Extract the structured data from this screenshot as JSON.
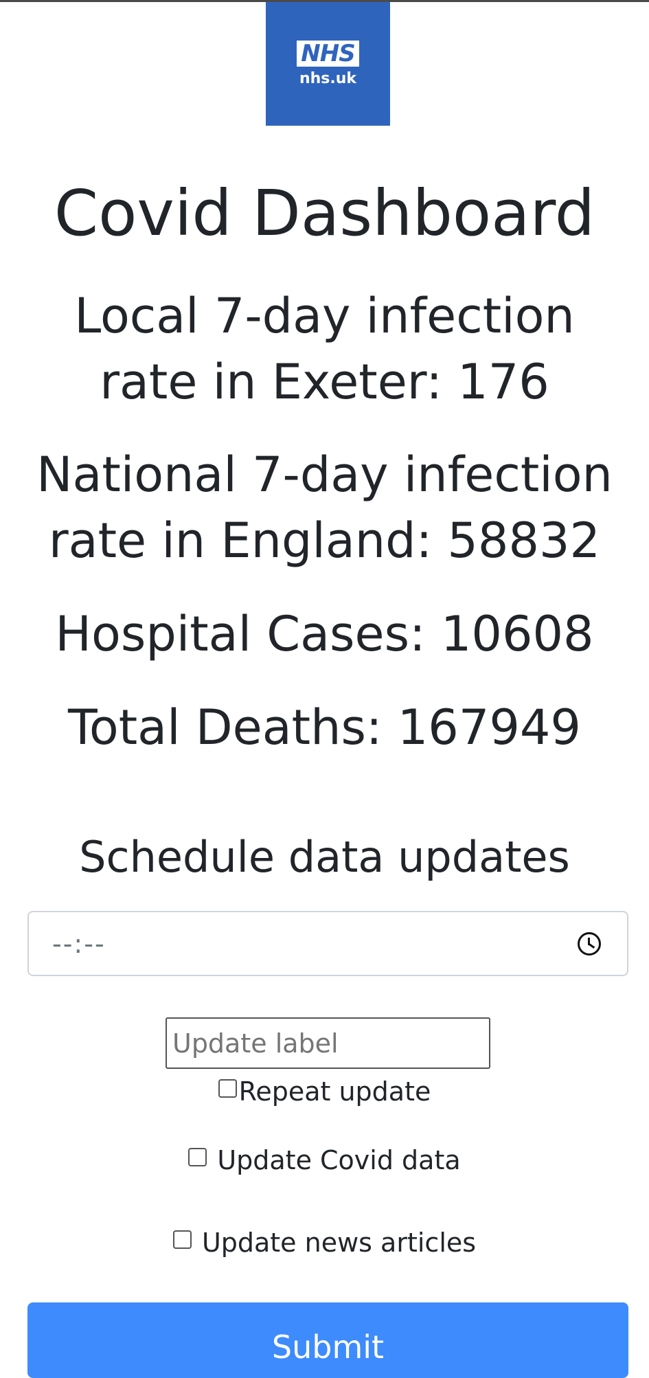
{
  "logo": {
    "word": "NHS",
    "domain": "nhs.uk"
  },
  "dashboard": {
    "title": "Covid Dashboard",
    "local_rate": "Local 7-day infection rate in Exeter: 176",
    "national_rate": "National 7-day infection rate in England: 58832",
    "hospital_cases": "Hospital Cases: 10608",
    "total_deaths": "Total Deaths: 167949"
  },
  "schedule": {
    "title": "Schedule data updates",
    "time_value": "--:--",
    "time_icon": "clock-icon",
    "label_placeholder": "Update label",
    "repeat_label": "Repeat update",
    "covid_label": "Update Covid data",
    "news_label": "Update news articles",
    "submit_label": "Submit"
  },
  "colors": {
    "logo_blue": "#2f64bd",
    "submit_blue": "#3d8bfd",
    "text": "#212529"
  }
}
